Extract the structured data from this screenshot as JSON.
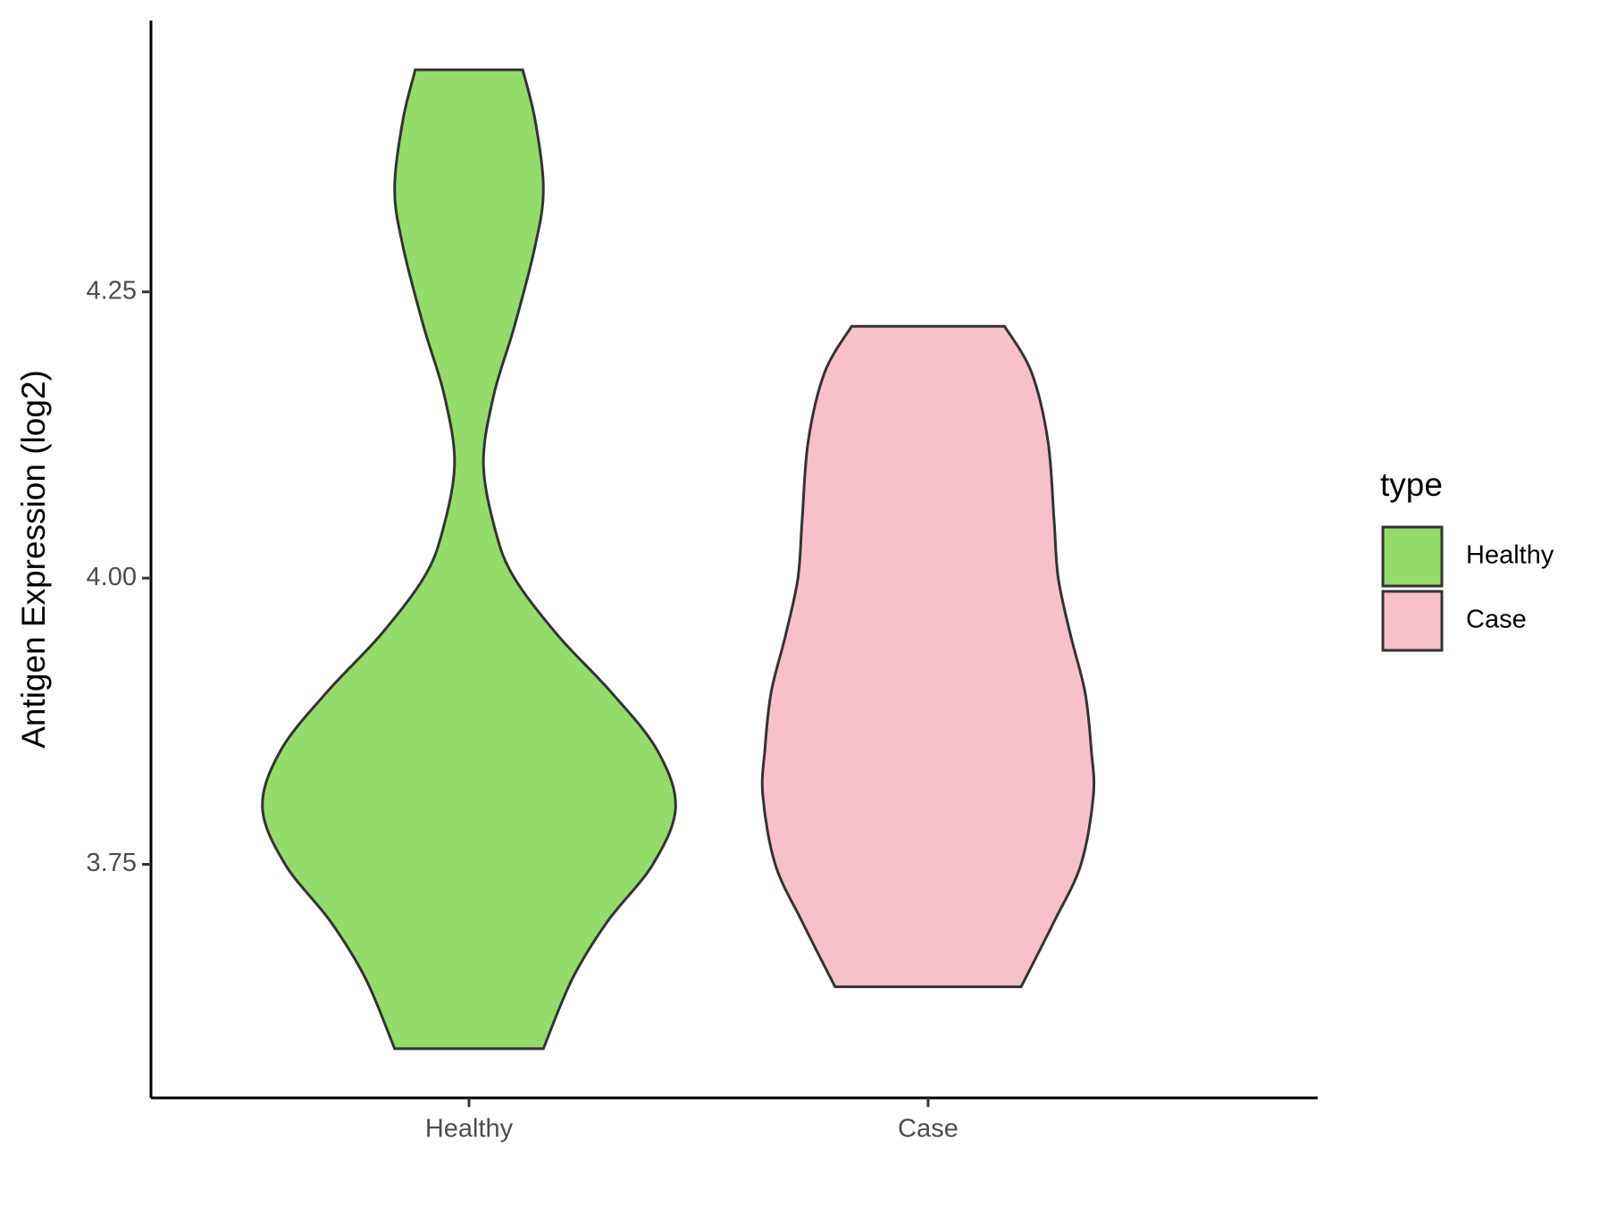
{
  "chart_data": {
    "type": "violin",
    "y_label": "Antigen Expression (log2)",
    "categories": [
      "Healthy",
      "Case"
    ],
    "legend_title": "type",
    "legend": "right",
    "series": [
      {
        "name": "Healthy",
        "color": "#93dc6a",
        "y": [
          4.444,
          4.4,
          4.34,
          4.29,
          4.22,
          4.16,
          4.1,
          4.04,
          4.0,
          3.95,
          3.9,
          3.85,
          3.8,
          3.75,
          3.7,
          3.65,
          3.589
        ],
        "density": [
          0.26,
          0.32,
          0.36,
          0.32,
          0.22,
          0.12,
          0.07,
          0.13,
          0.22,
          0.43,
          0.69,
          0.91,
          1.0,
          0.89,
          0.67,
          0.5,
          0.36
        ]
      },
      {
        "name": "Case",
        "color": "#f8c0cb",
        "y": [
          4.22,
          4.18,
          4.12,
          4.05,
          4.0,
          3.95,
          3.9,
          3.85,
          3.81,
          3.75,
          3.7,
          3.643
        ],
        "density": [
          0.37,
          0.5,
          0.58,
          0.61,
          0.63,
          0.69,
          0.76,
          0.79,
          0.8,
          0.74,
          0.61,
          0.45
        ]
      }
    ],
    "ylim": [
      3.546,
      4.487
    ],
    "yticks": [
      3.75,
      {
        "value": 4,
        "label": "4.00"
      },
      4.25
    ]
  }
}
